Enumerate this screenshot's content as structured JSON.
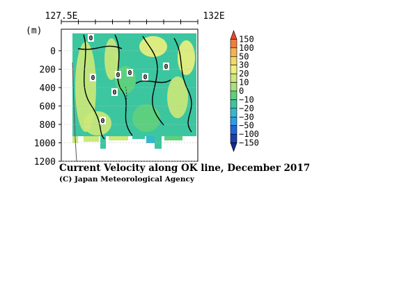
{
  "chart_data": {
    "type": "heatmap",
    "title": "Current Velocity along OK line, December 2017",
    "credit": "(C) Japan Meteorological Agency",
    "x_axis": {
      "ticks": [
        "127.5E",
        "132E"
      ],
      "range": [
        127.5,
        132
      ]
    },
    "y_axis": {
      "unit": "(m)",
      "ticks": [
        0,
        200,
        400,
        600,
        800,
        1000,
        1200
      ],
      "range": [
        0,
        1200
      ],
      "inverted": true
    },
    "colorbar": {
      "levels": [
        150,
        100,
        50,
        30,
        20,
        10,
        0,
        -10,
        -20,
        -30,
        -50,
        -100,
        -150
      ],
      "colors": [
        "#e8482a",
        "#f07e3c",
        "#f6b24f",
        "#f4d863",
        "#eef07a",
        "#cce878",
        "#a8e07a",
        "#5fd07a",
        "#3cc6a0",
        "#35b8cf",
        "#2a9ee6",
        "#2066d8",
        "#1a3fb0",
        "#152b8c"
      ]
    },
    "contour_labels": [
      "0",
      "0",
      "0",
      "0",
      "0",
      "0",
      "0",
      "0"
    ],
    "series": []
  }
}
